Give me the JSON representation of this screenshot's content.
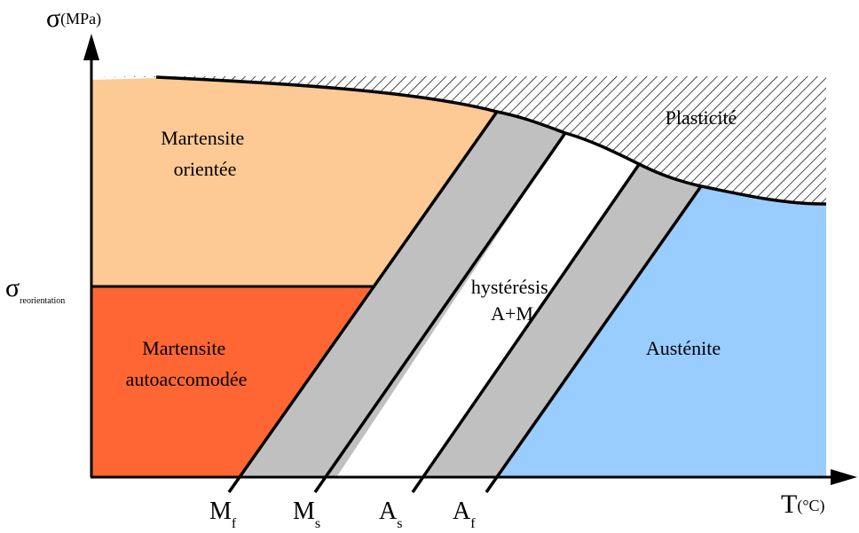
{
  "y_axis": {
    "symbol": "σ",
    "unit": "(MPa)"
  },
  "x_axis": {
    "symbol": "T",
    "unit": "(°C)"
  },
  "sigma_reorientation": {
    "symbol": "σ",
    "subscript": "reorientation"
  },
  "regions": {
    "martensite_orientee": [
      "Martensite",
      "orientée"
    ],
    "martensite_autoaccomodee": [
      "Martensite",
      "autoaccomodée"
    ],
    "hysteresis": [
      "hystérésis",
      "A+M"
    ],
    "austenite": "Austénite",
    "plasticite": "Plasticité"
  },
  "ticks": [
    {
      "main": "M",
      "sub": "f"
    },
    {
      "main": "M",
      "sub": "s"
    },
    {
      "main": "A",
      "sub": "s"
    },
    {
      "main": "A",
      "sub": "f"
    }
  ],
  "colors": {
    "martensite_orientee": "#fdc994",
    "martensite_autoaccomodee": "#ff6633",
    "transformation_band": "#c0c0c0",
    "austenite": "#99ccff",
    "hysteresis": "#ffffff",
    "hatch": "#000000"
  }
}
